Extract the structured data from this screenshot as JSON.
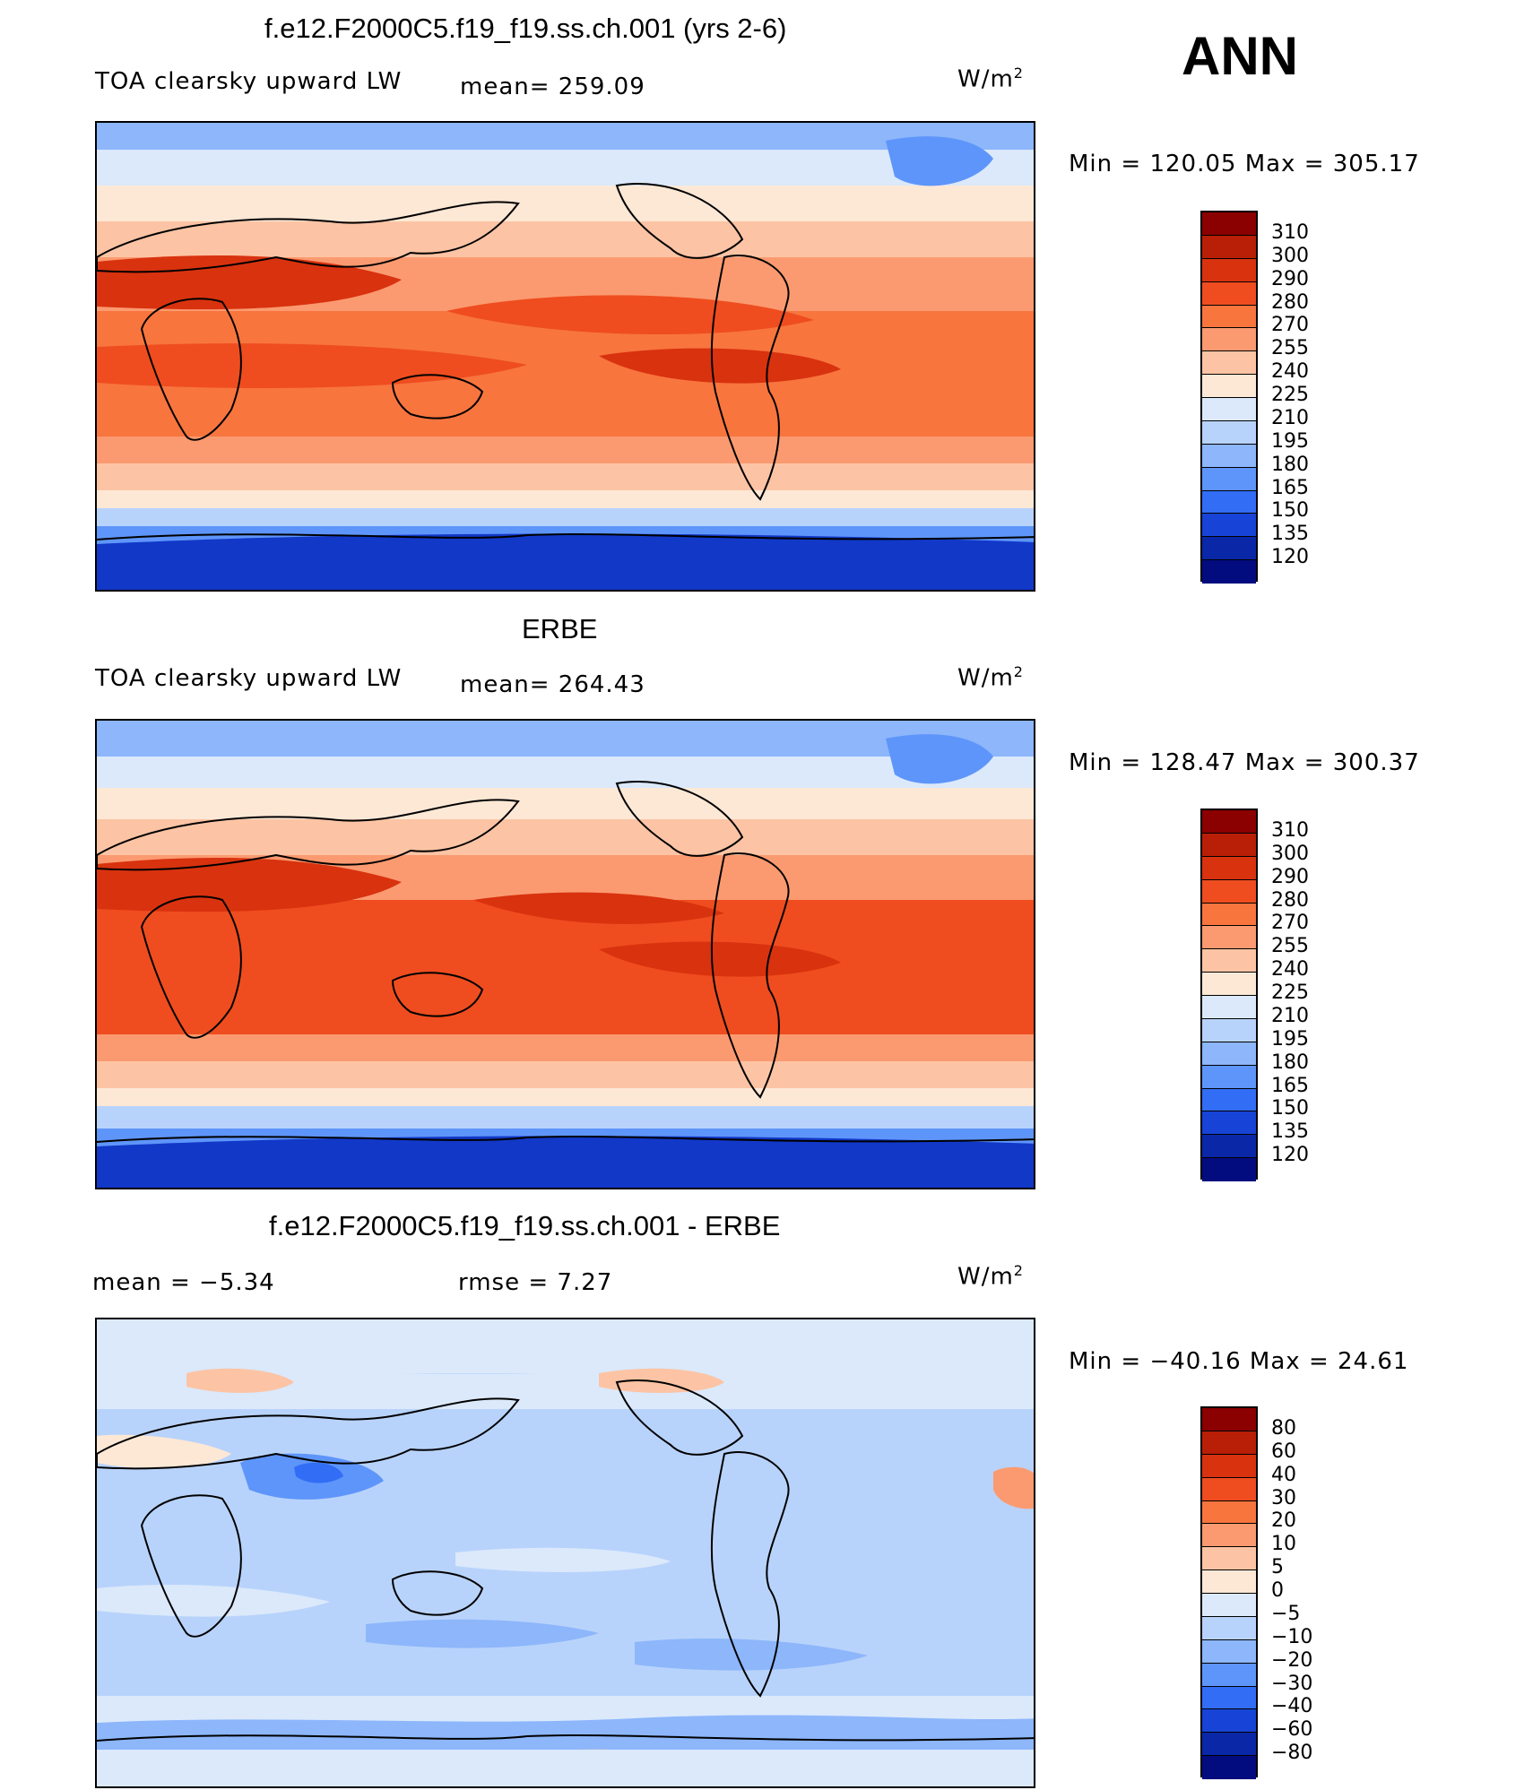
{
  "season": "ANN",
  "units_base": "W/m",
  "units_exp": "2",
  "panels": [
    {
      "title": "f.e12.F2000C5.f19_f19.ss.ch.001 (yrs 2-6)",
      "variable": "TOA clearsky upward LW",
      "stat1": "mean= 259.09",
      "stat2": "",
      "minmax": "Min = 120.05 Max = 305.17"
    },
    {
      "title": "ERBE",
      "variable": "TOA clearsky upward LW",
      "stat1": "mean= 264.43",
      "stat2": "",
      "minmax": "Min = 128.47 Max = 300.37"
    },
    {
      "title": "f.e12.F2000C5.f19_f19.ss.ch.001 - ERBE",
      "variable": "",
      "stat1": "mean =   −5.34",
      "stat2": "rmse =    7.27",
      "minmax": "Min = −40.16 Max =   24.61"
    }
  ],
  "colorbars": {
    "absolute": {
      "labels": [
        "310",
        "300",
        "290",
        "280",
        "270",
        "255",
        "240",
        "225",
        "210",
        "195",
        "180",
        "165",
        "150",
        "135",
        "120"
      ],
      "colors": [
        "#8b0000",
        "#b81f06",
        "#d9320f",
        "#ef4d1f",
        "#f8753e",
        "#fb9a70",
        "#fcc4a4",
        "#fde8d6",
        "#dbe9fb",
        "#b8d3fb",
        "#8db6fb",
        "#5e95fa",
        "#326df5",
        "#1744d6",
        "#0a27a8",
        "#020c7e"
      ]
    },
    "difference": {
      "labels": [
        "80",
        "60",
        "40",
        "30",
        "20",
        "10",
        "5",
        "0",
        "−5",
        "−10",
        "−20",
        "−30",
        "−40",
        "−60",
        "−80"
      ],
      "colors": [
        "#8b0000",
        "#b81f06",
        "#d9320f",
        "#ef4d1f",
        "#f8753e",
        "#fb9a70",
        "#fcc4a4",
        "#fde8d6",
        "#dbe9fb",
        "#b8d3fb",
        "#8db6fb",
        "#5e95fa",
        "#326df5",
        "#1744d6",
        "#0a27a8",
        "#020c7e"
      ]
    }
  },
  "field_colors": {
    "polar_south": "#1238c8",
    "subpolar_south": "#5e95fa",
    "mid_cool": "#b8d3fb",
    "mid_pale": "#fde8d6",
    "subtropic": "#fcc4a4",
    "warm": "#f8753e",
    "hot": "#ef4d1f",
    "hottest": "#d9320f",
    "diff_base": "#b8d3fb",
    "diff_pale": "#dbe9fb",
    "diff_mid": "#8db6fb",
    "diff_strong": "#5e95fa",
    "diff_warm": "#fcc4a4",
    "diff_hot": "#fb9a70"
  }
}
